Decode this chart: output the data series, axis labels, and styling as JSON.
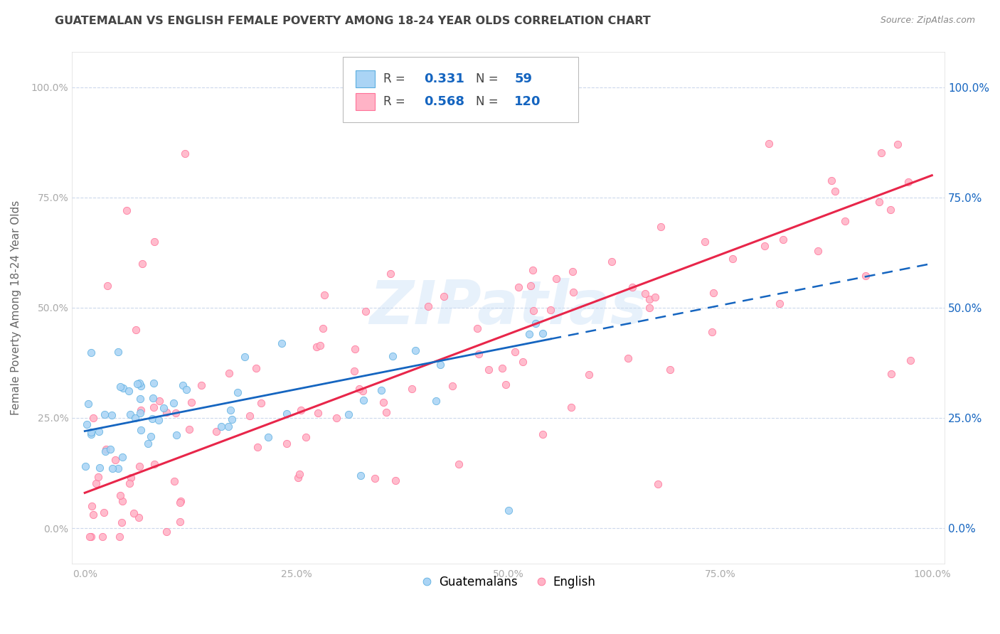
{
  "title": "GUATEMALAN VS ENGLISH FEMALE POVERTY AMONG 18-24 YEAR OLDS CORRELATION CHART",
  "source": "Source: ZipAtlas.com",
  "ylabel": "Female Poverty Among 18-24 Year Olds",
  "xlim": [
    -0.015,
    1.015
  ],
  "ylim": [
    -0.08,
    1.08
  ],
  "xticks": [
    0.0,
    0.25,
    0.5,
    0.75,
    1.0
  ],
  "yticks": [
    0.0,
    0.25,
    0.5,
    0.75,
    1.0
  ],
  "guatemalan_color": "#aad4f5",
  "guatemalan_edge": "#5aaee0",
  "english_color": "#ffb3c6",
  "english_edge": "#ff7097",
  "regression_blue_solid": "#1565c0",
  "regression_pink_solid": "#e8264a",
  "right_tick_color": "#1565c0",
  "R_guatemalan": 0.331,
  "N_guatemalan": 59,
  "R_english": 0.568,
  "N_english": 120,
  "watermark": "ZIPatlas",
  "background_color": "#ffffff",
  "grid_color": "#ccd8ec",
  "title_color": "#444444",
  "label_color": "#666666",
  "tick_color": "#aaaaaa"
}
